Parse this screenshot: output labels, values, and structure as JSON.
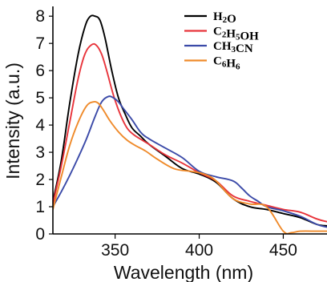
{
  "chart_data": {
    "type": "line",
    "title": "",
    "xlabel": "Wavelength (nm)",
    "ylabel": "Intensity (a.u.)",
    "xlim": [
      313,
      476
    ],
    "ylim": [
      0,
      8.3
    ],
    "xticks": [
      350,
      400,
      450
    ],
    "yticks": [
      0,
      1,
      2,
      3,
      4,
      5,
      6,
      7,
      8
    ],
    "grid": false,
    "legend_position": "top-right",
    "series": [
      {
        "name": "H2O",
        "label_parts": [
          [
            "H",
            ""
          ],
          [
            "2",
            "sub"
          ],
          [
            "O",
            ""
          ]
        ],
        "color": "#000000",
        "x": [
          313,
          318,
          323,
          328,
          332,
          335,
          338,
          341,
          344,
          348,
          352,
          356,
          360,
          365,
          370,
          380,
          390,
          400,
          410,
          420,
          430,
          440,
          450,
          460,
          470,
          476
        ],
        "y": [
          1.2,
          2.7,
          4.8,
          6.6,
          7.6,
          7.98,
          8.0,
          7.85,
          7.2,
          6.0,
          5.0,
          4.4,
          3.9,
          3.6,
          3.3,
          2.85,
          2.4,
          2.2,
          1.9,
          1.3,
          1.0,
          0.9,
          0.75,
          0.6,
          0.35,
          0.3
        ]
      },
      {
        "name": "C2H5OH",
        "label_parts": [
          [
            "C",
            ""
          ],
          [
            "2",
            "sub"
          ],
          [
            "H",
            ""
          ],
          [
            "5",
            "sub"
          ],
          [
            "OH",
            ""
          ]
        ],
        "color": "#e8343b",
        "x": [
          313,
          318,
          323,
          328,
          332,
          336,
          339,
          342,
          345,
          349,
          353,
          357,
          361,
          366,
          370,
          380,
          390,
          400,
          410,
          420,
          430,
          440,
          450,
          460,
          470,
          476
        ],
        "y": [
          1.1,
          2.5,
          4.1,
          5.7,
          6.6,
          6.95,
          6.92,
          6.6,
          6.0,
          5.1,
          4.4,
          3.9,
          3.65,
          3.45,
          3.3,
          2.9,
          2.6,
          2.25,
          1.95,
          1.4,
          1.2,
          1.05,
          0.9,
          0.8,
          0.55,
          0.45
        ]
      },
      {
        "name": "CH3CN",
        "label_parts": [
          [
            "CH",
            ""
          ],
          [
            "3",
            "sub"
          ],
          [
            "CN",
            ""
          ]
        ],
        "color": "#3b4aa8",
        "x": [
          313,
          318,
          323,
          328,
          333,
          338,
          342,
          346,
          349,
          352,
          355,
          360,
          365,
          370,
          380,
          390,
          400,
          410,
          420,
          425,
          430,
          435,
          440,
          450,
          460,
          470,
          476
        ],
        "y": [
          1.0,
          1.55,
          2.15,
          2.8,
          3.5,
          4.3,
          4.85,
          5.05,
          5.0,
          4.85,
          4.6,
          4.2,
          3.75,
          3.5,
          3.15,
          2.8,
          2.3,
          2.1,
          1.95,
          1.7,
          1.4,
          1.2,
          1.0,
          0.85,
          0.65,
          0.35,
          0.25
        ]
      },
      {
        "name": "C6H6",
        "label_parts": [
          [
            "C",
            ""
          ],
          [
            "6",
            "sub"
          ],
          [
            "H",
            ""
          ],
          [
            "6",
            "sub"
          ]
        ],
        "color": "#ef8a2a",
        "x": [
          313,
          318,
          323,
          328,
          333,
          337,
          340,
          343,
          347,
          352,
          357,
          362,
          368,
          375,
          385,
          395,
          400,
          405,
          410,
          420,
          430,
          440,
          450,
          455,
          460,
          470,
          476
        ],
        "y": [
          0.9,
          2.1,
          3.25,
          4.1,
          4.7,
          4.85,
          4.8,
          4.55,
          4.15,
          3.75,
          3.45,
          3.25,
          3.05,
          2.75,
          2.4,
          2.3,
          2.25,
          2.15,
          1.95,
          1.3,
          1.1,
          1.0,
          0.1,
          0.05,
          0.1,
          0.1,
          0.1
        ]
      }
    ]
  }
}
